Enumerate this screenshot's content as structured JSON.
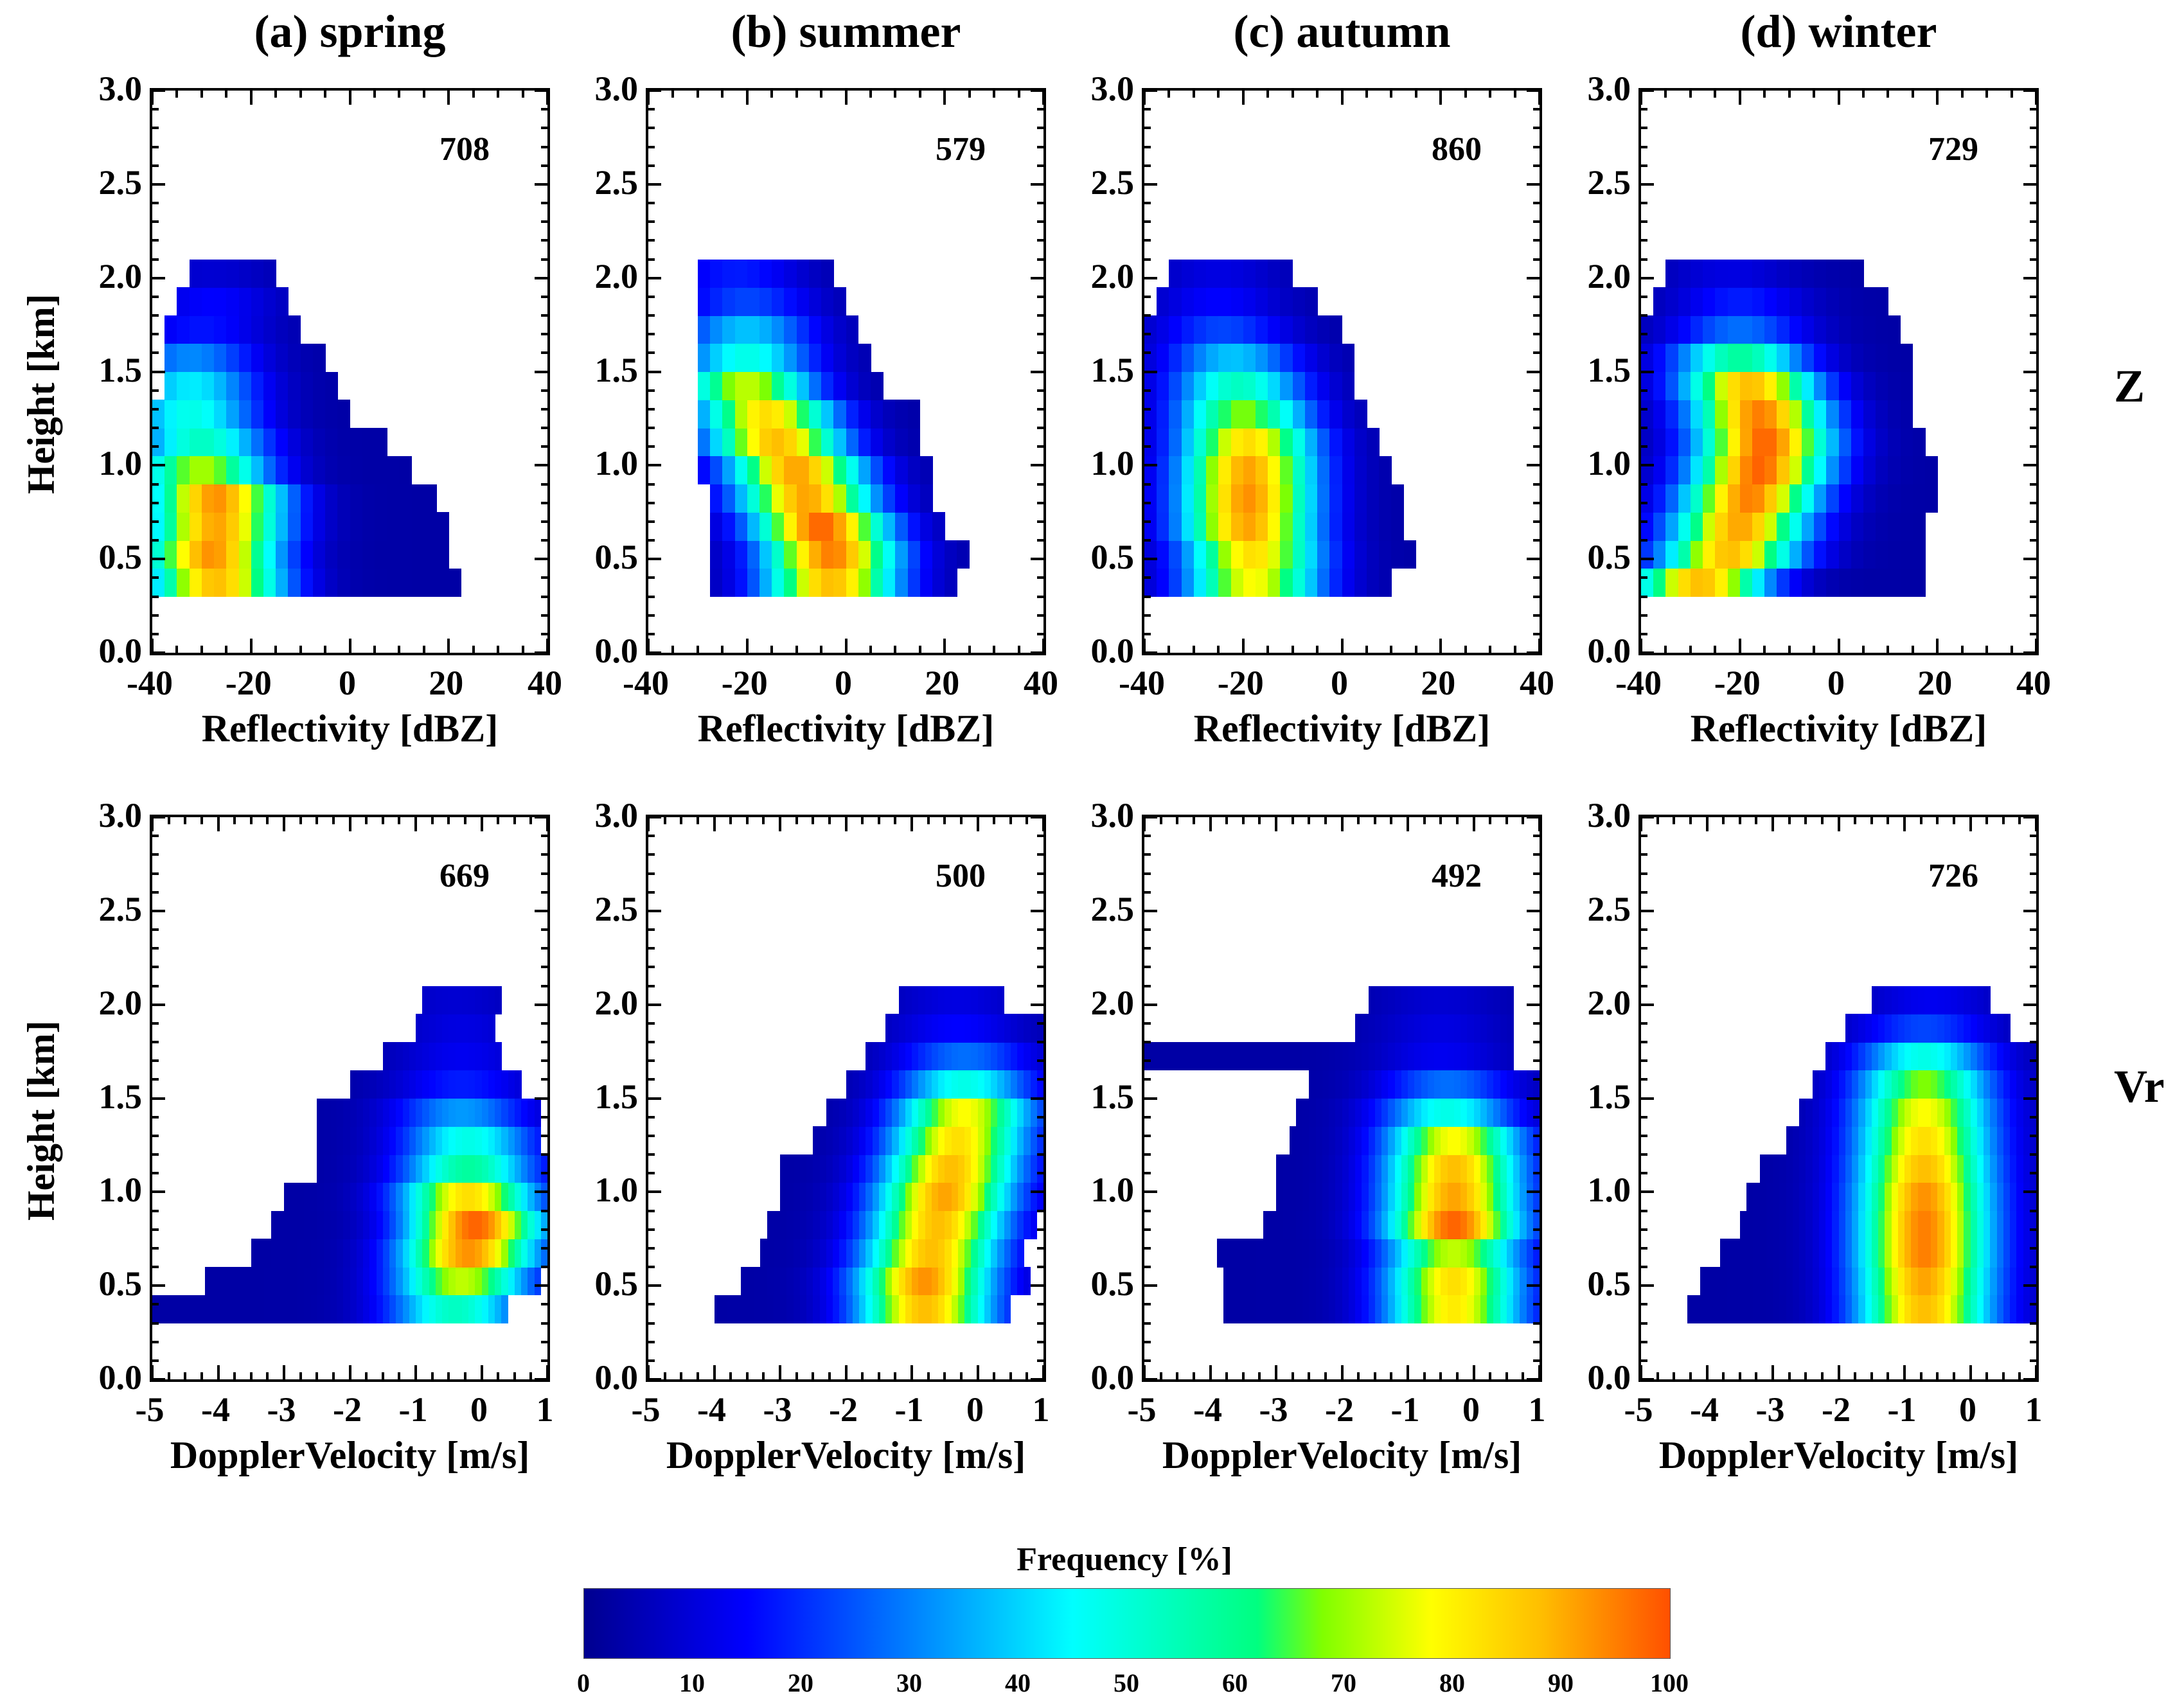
{
  "figure": {
    "columns": [
      "(a) spring",
      "(b) summer",
      "(c) autumn",
      "(d) winter"
    ],
    "row_labels": [
      "Z",
      "Vr"
    ],
    "colorbar": {
      "title": "Frequency [%]",
      "ticks": [
        "0",
        "10",
        "20",
        "30",
        "40",
        "50",
        "60",
        "70",
        "80",
        "90",
        "100"
      ]
    }
  },
  "chart_data": [
    {
      "type": "heatmap",
      "row": "Z",
      "season": "spring",
      "title": "(a) spring",
      "count": "708",
      "xlabel": "Reflectivity [dBZ]",
      "ylabel": "Height [km]",
      "xlim": [
        -40,
        40
      ],
      "ylim": [
        0,
        3.0
      ],
      "xticks": [
        "-40",
        "-20",
        "0",
        "20",
        "40"
      ],
      "yticks": [
        "0.0",
        "0.5",
        "1.0",
        "1.5",
        "2.0",
        "2.5",
        "3.0"
      ],
      "colorbar_range": [
        0,
        100
      ],
      "bin_height_km": 0.15,
      "bin_width": 2.5,
      "base_km": 0.3,
      "rows": [
        {
          "h": 0.3,
          "x0": -40,
          "x1": 22.5,
          "peak_x": -27,
          "peak": 85
        },
        {
          "h": 0.45,
          "x0": -40,
          "x1": 20,
          "peak_x": -28,
          "peak": 90
        },
        {
          "h": 0.6,
          "x0": -40,
          "x1": 20,
          "peak_x": -27,
          "peak": 88
        },
        {
          "h": 0.75,
          "x0": -40,
          "x1": 17.5,
          "peak_x": -27,
          "peak": 90
        },
        {
          "h": 0.9,
          "x0": -40,
          "x1": 12.5,
          "peak_x": -30,
          "peak": 68
        },
        {
          "h": 1.05,
          "x0": -40,
          "x1": 7.5,
          "peak_x": -30,
          "peak": 50
        },
        {
          "h": 1.2,
          "x0": -40,
          "x1": 0,
          "peak_x": -32,
          "peak": 45
        },
        {
          "h": 1.35,
          "x0": -37.5,
          "x1": -2.5,
          "peak_x": -32,
          "peak": 40
        },
        {
          "h": 1.5,
          "x0": -37.5,
          "x1": -5,
          "peak_x": -32,
          "peak": 28
        },
        {
          "h": 1.65,
          "x0": -37.5,
          "x1": -10,
          "peak_x": -30,
          "peak": 14
        },
        {
          "h": 1.8,
          "x0": -35,
          "x1": -12.5,
          "peak_x": -28,
          "peak": 12
        },
        {
          "h": 1.95,
          "x0": -32.5,
          "x1": -15,
          "peak_x": -28,
          "peak": 6
        }
      ]
    },
    {
      "type": "heatmap",
      "row": "Z",
      "season": "summer",
      "title": "(b) summer",
      "count": "579",
      "xlabel": "Reflectivity [dBZ]",
      "ylabel": "Height [km]",
      "xlim": [
        -40,
        40
      ],
      "ylim": [
        0,
        3.0
      ],
      "xticks": [
        "-40",
        "-20",
        "0",
        "20",
        "40"
      ],
      "yticks": [
        "0.0",
        "0.5",
        "1.0",
        "1.5",
        "2.0",
        "2.5",
        "3.0"
      ],
      "colorbar_range": [
        0,
        100
      ],
      "bin_height_km": 0.15,
      "bin_width": 2.5,
      "base_km": 0.3,
      "rows": [
        {
          "h": 0.3,
          "x0": -27.5,
          "x1": 22.5,
          "peak_x": -3,
          "peak": 85
        },
        {
          "h": 0.45,
          "x0": -27.5,
          "x1": 25,
          "peak_x": -3,
          "peak": 92
        },
        {
          "h": 0.6,
          "x0": -27.5,
          "x1": 20,
          "peak_x": -5,
          "peak": 95
        },
        {
          "h": 0.75,
          "x0": -27.5,
          "x1": 17.5,
          "peak_x": -8,
          "peak": 88
        },
        {
          "h": 0.9,
          "x0": -30,
          "x1": 17.5,
          "peak_x": -10,
          "peak": 88
        },
        {
          "h": 1.05,
          "x0": -30,
          "x1": 15,
          "peak_x": -14,
          "peak": 85
        },
        {
          "h": 1.2,
          "x0": -30,
          "x1": 15,
          "peak_x": -16,
          "peak": 80
        },
        {
          "h": 1.35,
          "x0": -30,
          "x1": 7.5,
          "peak_x": -20,
          "peak": 70
        },
        {
          "h": 1.5,
          "x0": -30,
          "x1": 5,
          "peak_x": -20,
          "peak": 45
        },
        {
          "h": 1.65,
          "x0": -30,
          "x1": 2.5,
          "peak_x": -20,
          "peak": 35
        },
        {
          "h": 1.8,
          "x0": -30,
          "x1": 0,
          "peak_x": -20,
          "peak": 20
        },
        {
          "h": 1.95,
          "x0": -30,
          "x1": -2.5,
          "peak_x": -22,
          "peak": 15
        }
      ]
    },
    {
      "type": "heatmap",
      "row": "Z",
      "season": "autumn",
      "title": "(c) autumn",
      "count": "860",
      "xlabel": "Reflectivity [dBZ]",
      "ylabel": "Height [km]",
      "xlim": [
        -40,
        40
      ],
      "ylim": [
        0,
        3.0
      ],
      "xticks": [
        "-40",
        "-20",
        "0",
        "20",
        "40"
      ],
      "yticks": [
        "0.0",
        "0.5",
        "1.0",
        "1.5",
        "2.0",
        "2.5",
        "3.0"
      ],
      "colorbar_range": [
        0,
        100
      ],
      "bin_height_km": 0.15,
      "bin_width": 2.5,
      "base_km": 0.3,
      "rows": [
        {
          "h": 0.3,
          "x0": -40,
          "x1": 10,
          "peak_x": -18,
          "peak": 75
        },
        {
          "h": 0.45,
          "x0": -40,
          "x1": 15,
          "peak_x": -18,
          "peak": 80
        },
        {
          "h": 0.6,
          "x0": -40,
          "x1": 12.5,
          "peak_x": -19,
          "peak": 88
        },
        {
          "h": 0.75,
          "x0": -40,
          "x1": 12.5,
          "peak_x": -19,
          "peak": 90
        },
        {
          "h": 0.9,
          "x0": -40,
          "x1": 10,
          "peak_x": -19,
          "peak": 88
        },
        {
          "h": 1.05,
          "x0": -40,
          "x1": 7.5,
          "peak_x": -19,
          "peak": 80
        },
        {
          "h": 1.2,
          "x0": -40,
          "x1": 5,
          "peak_x": -20,
          "peak": 65
        },
        {
          "h": 1.35,
          "x0": -40,
          "x1": 2.5,
          "peak_x": -21,
          "peak": 50
        },
        {
          "h": 1.5,
          "x0": -40,
          "x1": 2.5,
          "peak_x": -22,
          "peak": 35
        },
        {
          "h": 1.65,
          "x0": -40,
          "x1": 0,
          "peak_x": -24,
          "peak": 20
        },
        {
          "h": 1.8,
          "x0": -37.5,
          "x1": -5,
          "peak_x": -25,
          "peak": 12
        },
        {
          "h": 1.95,
          "x0": -35,
          "x1": -10,
          "peak_x": -25,
          "peak": 8
        }
      ]
    },
    {
      "type": "heatmap",
      "row": "Z",
      "season": "winter",
      "title": "(d) winter",
      "count": "729",
      "xlabel": "Reflectivity [dBZ]",
      "ylabel": "Height [km]",
      "xlim": [
        -40,
        40
      ],
      "ylim": [
        0,
        3.0
      ],
      "xticks": [
        "-40",
        "-20",
        "0",
        "20",
        "40"
      ],
      "yticks": [
        "0.0",
        "0.5",
        "1.0",
        "1.5",
        "2.0",
        "2.5",
        "3.0"
      ],
      "colorbar_range": [
        0,
        100
      ],
      "bin_height_km": 0.15,
      "bin_width": 2.5,
      "base_km": 0.3,
      "rows": [
        {
          "h": 0.3,
          "x0": -40,
          "x1": 17.5,
          "peak_x": -28,
          "peak": 85
        },
        {
          "h": 0.45,
          "x0": -40,
          "x1": 17.5,
          "peak_x": -22,
          "peak": 85
        },
        {
          "h": 0.6,
          "x0": -40,
          "x1": 17.5,
          "peak_x": -20,
          "peak": 88
        },
        {
          "h": 0.75,
          "x0": -40,
          "x1": 20,
          "peak_x": -18,
          "peak": 92
        },
        {
          "h": 0.9,
          "x0": -40,
          "x1": 20,
          "peak_x": -16,
          "peak": 95
        },
        {
          "h": 1.05,
          "x0": -40,
          "x1": 17.5,
          "peak_x": -15,
          "peak": 95
        },
        {
          "h": 1.2,
          "x0": -40,
          "x1": 15,
          "peak_x": -16,
          "peak": 92
        },
        {
          "h": 1.35,
          "x0": -40,
          "x1": 15,
          "peak_x": -18,
          "peak": 85
        },
        {
          "h": 1.5,
          "x0": -40,
          "x1": 15,
          "peak_x": -20,
          "peak": 55
        },
        {
          "h": 1.65,
          "x0": -40,
          "x1": 12.5,
          "peak_x": -20,
          "peak": 25
        },
        {
          "h": 1.8,
          "x0": -37.5,
          "x1": 10,
          "peak_x": -20,
          "peak": 15
        },
        {
          "h": 1.95,
          "x0": -35,
          "x1": 5,
          "peak_x": -22,
          "peak": 8
        }
      ]
    },
    {
      "type": "heatmap",
      "row": "Vr",
      "season": "spring",
      "title": "(a) spring",
      "count": "669",
      "xlabel": "DopplerVelocity [m/s]",
      "ylabel": "Height [km]",
      "xlim": [
        -5,
        1
      ],
      "ylim": [
        0,
        3.0
      ],
      "xticks": [
        "-5",
        "-4",
        "-3",
        "-2",
        "-1",
        "0",
        "1"
      ],
      "yticks": [
        "0.0",
        "0.5",
        "1.0",
        "1.5",
        "2.0",
        "2.5",
        "3.0"
      ],
      "colorbar_range": [
        0,
        100
      ],
      "bin_height_km": 0.15,
      "bin_width": 0.1,
      "base_km": 0.3,
      "rows": [
        {
          "h": 0.3,
          "x0": -5,
          "x1": 0.4,
          "peak_x": -0.4,
          "peak": 50
        },
        {
          "h": 0.45,
          "x0": -4.2,
          "x1": 0.9,
          "peak_x": -0.3,
          "peak": 70
        },
        {
          "h": 0.6,
          "x0": -3.5,
          "x1": 1.0,
          "peak_x": -0.2,
          "peak": 90
        },
        {
          "h": 0.75,
          "x0": -3.2,
          "x1": 1.0,
          "peak_x": -0.1,
          "peak": 95
        },
        {
          "h": 0.9,
          "x0": -3.0,
          "x1": 1.0,
          "peak_x": -0.2,
          "peak": 80
        },
        {
          "h": 1.05,
          "x0": -2.5,
          "x1": 1.0,
          "peak_x": -0.2,
          "peak": 55
        },
        {
          "h": 1.2,
          "x0": -2.5,
          "x1": 0.9,
          "peak_x": -0.2,
          "peak": 45
        },
        {
          "h": 1.35,
          "x0": -2.5,
          "x1": 0.9,
          "peak_x": -0.3,
          "peak": 30
        },
        {
          "h": 1.5,
          "x0": -2.0,
          "x1": 0.6,
          "peak_x": -0.3,
          "peak": 15
        },
        {
          "h": 1.65,
          "x0": -1.5,
          "x1": 0.3,
          "peak_x": -0.3,
          "peak": 10
        },
        {
          "h": 1.8,
          "x0": -1.0,
          "x1": 0.2,
          "peak_x": -0.3,
          "peak": 8
        },
        {
          "h": 1.95,
          "x0": -0.9,
          "x1": 0.3,
          "peak_x": -0.4,
          "peak": 6
        }
      ]
    },
    {
      "type": "heatmap",
      "row": "Vr",
      "season": "summer",
      "title": "(b) summer",
      "count": "500",
      "xlabel": "DopplerVelocity [m/s]",
      "ylabel": "Height [km]",
      "xlim": [
        -5,
        1
      ],
      "ylim": [
        0,
        3.0
      ],
      "xticks": [
        "-5",
        "-4",
        "-3",
        "-2",
        "-1",
        "0",
        "1"
      ],
      "yticks": [
        "0.0",
        "0.5",
        "1.0",
        "1.5",
        "2.0",
        "2.5",
        "3.0"
      ],
      "colorbar_range": [
        0,
        100
      ],
      "bin_height_km": 0.15,
      "bin_width": 0.1,
      "base_km": 0.3,
      "rows": [
        {
          "h": 0.3,
          "x0": -4.0,
          "x1": 0.5,
          "peak_x": -0.8,
          "peak": 85
        },
        {
          "h": 0.45,
          "x0": -3.6,
          "x1": 0.8,
          "peak_x": -0.8,
          "peak": 90
        },
        {
          "h": 0.6,
          "x0": -3.3,
          "x1": 0.7,
          "peak_x": -0.7,
          "peak": 85
        },
        {
          "h": 0.75,
          "x0": -3.2,
          "x1": 0.9,
          "peak_x": -0.6,
          "peak": 85
        },
        {
          "h": 0.9,
          "x0": -3.0,
          "x1": 1.0,
          "peak_x": -0.5,
          "peak": 88
        },
        {
          "h": 1.05,
          "x0": -3.0,
          "x1": 1.0,
          "peak_x": -0.4,
          "peak": 85
        },
        {
          "h": 1.2,
          "x0": -2.5,
          "x1": 1.0,
          "peak_x": -0.3,
          "peak": 80
        },
        {
          "h": 1.35,
          "x0": -2.3,
          "x1": 1.0,
          "peak_x": -0.2,
          "peak": 75
        },
        {
          "h": 1.5,
          "x0": -2.0,
          "x1": 1.0,
          "peak_x": -0.2,
          "peak": 45
        },
        {
          "h": 1.65,
          "x0": -1.7,
          "x1": 1.0,
          "peak_x": -0.2,
          "peak": 25
        },
        {
          "h": 1.8,
          "x0": -1.4,
          "x1": 1.0,
          "peak_x": -0.3,
          "peak": 12
        },
        {
          "h": 1.95,
          "x0": -1.2,
          "x1": 0.4,
          "peak_x": -0.3,
          "peak": 8
        }
      ]
    },
    {
      "type": "heatmap",
      "row": "Vr",
      "season": "autumn",
      "title": "(c) autumn",
      "count": "492",
      "xlabel": "DopplerVelocity [m/s]",
      "ylabel": "Height [km]",
      "xlim": [
        -5,
        1
      ],
      "ylim": [
        0,
        3.0
      ],
      "xticks": [
        "-5",
        "-4",
        "-3",
        "-2",
        "-1",
        "0",
        "1"
      ],
      "yticks": [
        "0.0",
        "0.5",
        "1.0",
        "1.5",
        "2.0",
        "2.5",
        "3.0"
      ],
      "colorbar_range": [
        0,
        100
      ],
      "bin_height_km": 0.15,
      "bin_width": 0.1,
      "base_km": 0.3,
      "rows": [
        {
          "h": 0.3,
          "x0": -3.8,
          "x1": 1.0,
          "peak_x": -0.3,
          "peak": 78
        },
        {
          "h": 0.45,
          "x0": -3.8,
          "x1": 1.0,
          "peak_x": -0.3,
          "peak": 80
        },
        {
          "h": 0.6,
          "x0": -3.9,
          "x1": 1.0,
          "peak_x": -0.3,
          "peak": 70
        },
        {
          "h": 0.75,
          "x0": -3.2,
          "x1": 1.0,
          "peak_x": -0.3,
          "peak": 95
        },
        {
          "h": 0.9,
          "x0": -3.0,
          "x1": 1.0,
          "peak_x": -0.3,
          "peak": 88
        },
        {
          "h": 1.05,
          "x0": -3.0,
          "x1": 1.0,
          "peak_x": -0.3,
          "peak": 85
        },
        {
          "h": 1.2,
          "x0": -2.8,
          "x1": 1.0,
          "peak_x": -0.3,
          "peak": 75
        },
        {
          "h": 1.35,
          "x0": -2.7,
          "x1": 1.0,
          "peak_x": -0.4,
          "peak": 45
        },
        {
          "h": 1.5,
          "x0": -2.5,
          "x1": 1.0,
          "peak_x": -0.4,
          "peak": 25
        },
        {
          "h": 1.65,
          "x0": -5.0,
          "x1": 0.6,
          "peak_x": -0.5,
          "peak": 10
        },
        {
          "h": 1.8,
          "x0": -1.8,
          "x1": 0.6,
          "peak_x": -0.5,
          "peak": 8
        },
        {
          "h": 1.95,
          "x0": -1.6,
          "x1": 0.6,
          "peak_x": -0.5,
          "peak": 6
        }
      ]
    },
    {
      "type": "heatmap",
      "row": "Vr",
      "season": "winter",
      "title": "(d) winter",
      "count": "726",
      "xlabel": "DopplerVelocity [m/s]",
      "ylabel": "Height [km]",
      "xlim": [
        -5,
        1
      ],
      "ylim": [
        0,
        3.0
      ],
      "xticks": [
        "-5",
        "-4",
        "-3",
        "-2",
        "-1",
        "0",
        "1"
      ],
      "yticks": [
        "0.0",
        "0.5",
        "1.0",
        "1.5",
        "2.0",
        "2.5",
        "3.0"
      ],
      "colorbar_range": [
        0,
        100
      ],
      "bin_height_km": 0.15,
      "bin_width": 0.1,
      "base_km": 0.3,
      "rows": [
        {
          "h": 0.3,
          "x0": -4.3,
          "x1": 1.0,
          "peak_x": -0.7,
          "peak": 85
        },
        {
          "h": 0.45,
          "x0": -4.1,
          "x1": 1.0,
          "peak_x": -0.7,
          "peak": 88
        },
        {
          "h": 0.6,
          "x0": -3.8,
          "x1": 1.0,
          "peak_x": -0.7,
          "peak": 92
        },
        {
          "h": 0.75,
          "x0": -3.5,
          "x1": 1.0,
          "peak_x": -0.7,
          "peak": 92
        },
        {
          "h": 0.9,
          "x0": -3.4,
          "x1": 1.0,
          "peak_x": -0.7,
          "peak": 90
        },
        {
          "h": 1.05,
          "x0": -3.2,
          "x1": 1.0,
          "peak_x": -0.7,
          "peak": 85
        },
        {
          "h": 1.2,
          "x0": -2.8,
          "x1": 1.0,
          "peak_x": -0.7,
          "peak": 80
        },
        {
          "h": 1.35,
          "x0": -2.6,
          "x1": 1.0,
          "peak_x": -0.7,
          "peak": 75
        },
        {
          "h": 1.5,
          "x0": -2.4,
          "x1": 1.0,
          "peak_x": -0.7,
          "peak": 65
        },
        {
          "h": 1.65,
          "x0": -2.2,
          "x1": 1.0,
          "peak_x": -0.7,
          "peak": 45
        },
        {
          "h": 1.8,
          "x0": -1.9,
          "x1": 0.6,
          "peak_x": -0.7,
          "peak": 20
        },
        {
          "h": 1.95,
          "x0": -1.5,
          "x1": 0.3,
          "peak_x": -0.6,
          "peak": 10
        }
      ]
    }
  ]
}
